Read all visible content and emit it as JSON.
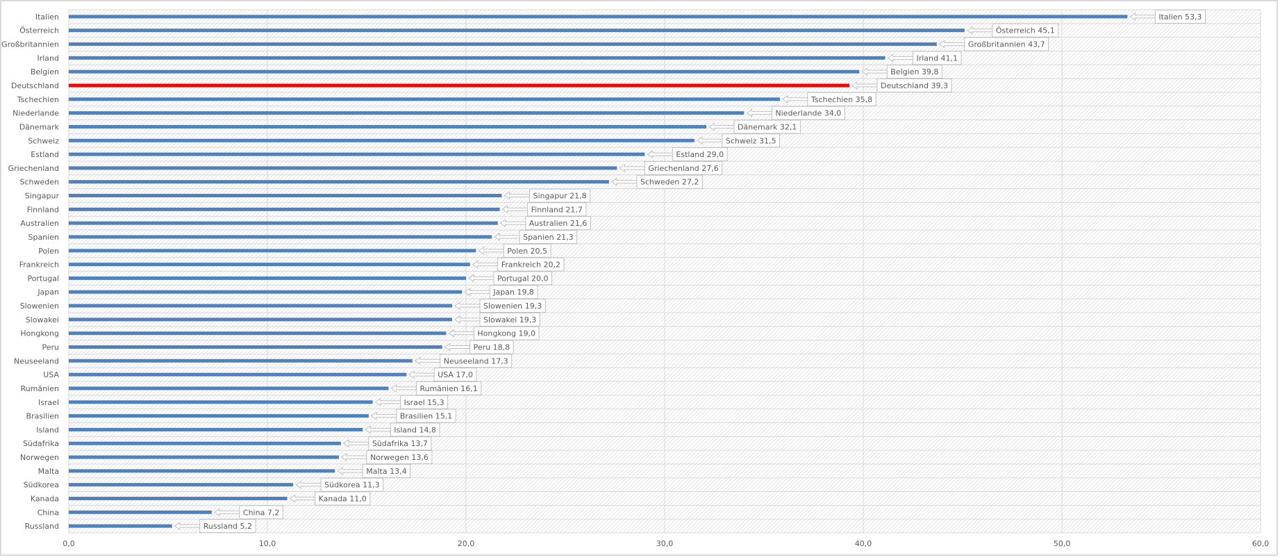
{
  "chart_data": {
    "type": "bar",
    "orientation": "horizontal",
    "title": "",
    "xlabel": "",
    "ylabel": "",
    "xlim": [
      0,
      60
    ],
    "x_ticks": [
      "0,0",
      "10,0",
      "20,0",
      "30,0",
      "40,0",
      "50,0",
      "60,0"
    ],
    "grid": true,
    "legend": "none",
    "bar_color": "#4f81bd",
    "highlight_color": "#ff0000",
    "highlight_category": "Deutschland",
    "categories": [
      "Italien",
      "Österreich",
      "Großbritannien",
      "Irland",
      "Belgien",
      "Deutschland",
      "Tschechien",
      "Niederlande",
      "Dänemark",
      "Schweiz",
      "Estland",
      "Griechenland",
      "Schweden",
      "Singapur",
      "Finnland",
      "Australien",
      "Spanien",
      "Polen",
      "Frankreich",
      "Portugal",
      "Japan",
      "Slowenien",
      "Slowakei",
      "Hongkong",
      "Peru",
      "Neuseeland",
      "USA",
      "Rumänien",
      "Israel",
      "Brasilien",
      "Island",
      "Südafrika",
      "Norwegen",
      "Malta",
      "Südkorea",
      "Kanada",
      "China",
      "Russland"
    ],
    "values": [
      53.3,
      45.1,
      43.7,
      41.1,
      39.8,
      39.3,
      35.8,
      34.0,
      32.1,
      31.5,
      29.0,
      27.6,
      27.2,
      21.8,
      21.7,
      21.6,
      21.3,
      20.5,
      20.2,
      20.0,
      19.8,
      19.3,
      19.3,
      19.0,
      18.8,
      17.3,
      17.0,
      16.1,
      15.3,
      15.1,
      14.8,
      13.7,
      13.6,
      13.4,
      11.3,
      11.0,
      7.2,
      5.2
    ],
    "data_labels": [
      "Italien 53,3",
      "Österreich 45,1",
      "Großbritannien 43,7",
      "Irland 41,1",
      "Belgien 39,8",
      "Deutschland 39,3",
      "Tschechien 35,8",
      "Niederlande 34,0",
      "Dänemark 32,1",
      "Schweiz 31,5",
      "Estland 29,0",
      "Griechenland 27,6",
      "Schweden 27,2",
      "Singapur 21,8",
      "Finnland 21,7",
      "Australien 21,6",
      "Spanien 21,3",
      "Polen 20,5",
      "Frankreich 20,2",
      "Portugal 20,0",
      "Japan 19,8",
      "Slowenien 19,3",
      "Slowakei 19,3",
      "Hongkong 19,0",
      "Peru 18,8",
      "Neuseeland 17,3",
      "USA 17,0",
      "Rumänien 16,1",
      "Israel 15,3",
      "Brasilien 15,1",
      "Island 14,8",
      "Südafrika 13,7",
      "Norwegen 13,6",
      "Malta 13,4",
      "Südkorea 11,3",
      "Kanada 11,0",
      "China 7,2",
      "Russland 5,2"
    ]
  }
}
